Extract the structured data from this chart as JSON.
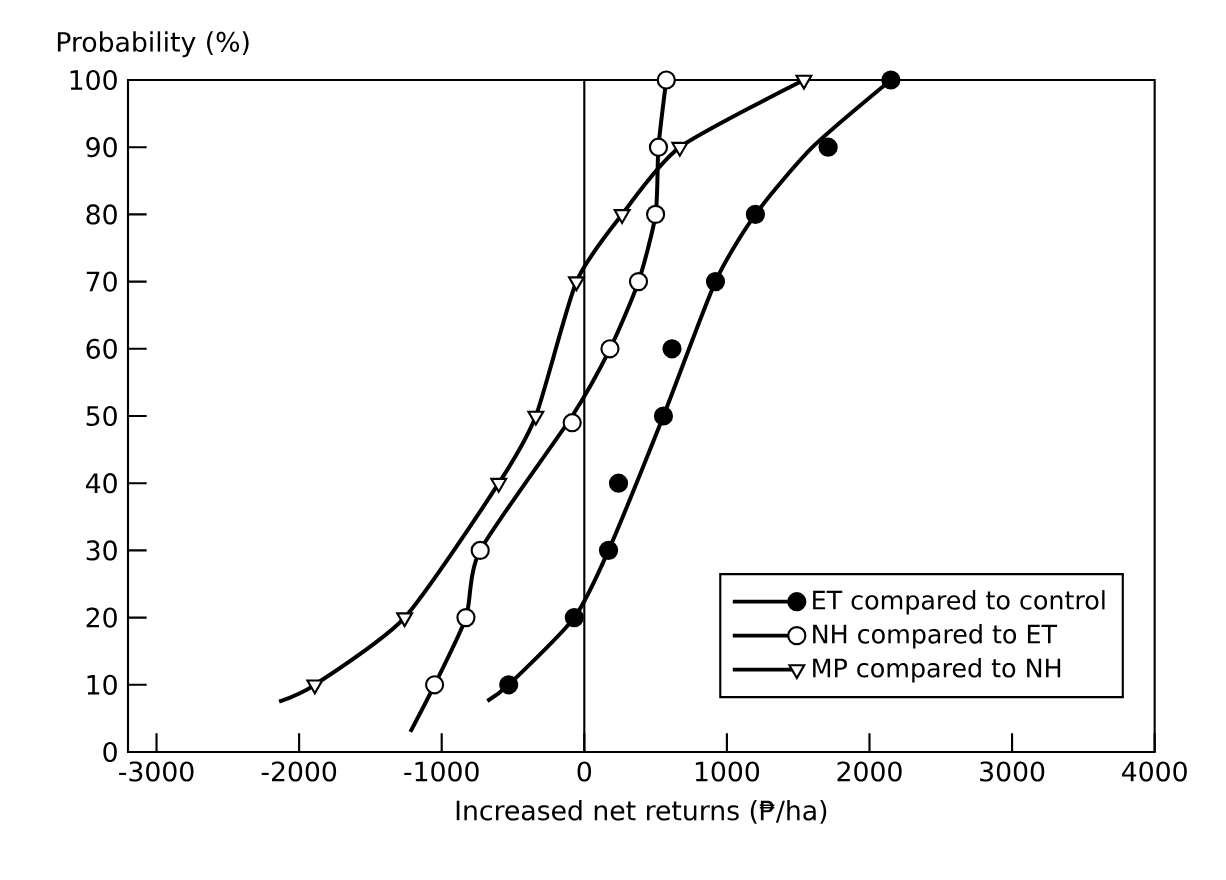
{
  "chart_data": {
    "type": "scatter",
    "xlabel": "Increased net returns (₱/ha)",
    "ylabel": "Probability (%)",
    "xlim": [
      -3200,
      4000
    ],
    "xticks": [
      -3000,
      -2000,
      -1000,
      0,
      1000,
      2000,
      3000,
      4000
    ],
    "ylim": [
      0,
      100
    ],
    "yticks": [
      0,
      10,
      20,
      30,
      40,
      50,
      60,
      70,
      80,
      90,
      100
    ],
    "legend": "bottom right",
    "grid": false,
    "ref_lines": [
      {
        "axis": "x",
        "value": 0,
        "color": "#000000"
      }
    ],
    "series": [
      {
        "name": "ET compared to control",
        "marker": "circle",
        "color": "#000000",
        "x": [
          -530,
          -70,
          170,
          240,
          555,
          615,
          920,
          1200,
          1710,
          2150
        ],
        "values": [
          10,
          20,
          30,
          40,
          50,
          60,
          70,
          80,
          90,
          100
        ]
      },
      {
        "name": "NH compared to ET",
        "marker": "circle",
        "color": "#ffffff",
        "x": [
          -1050,
          -830,
          -730,
          -85,
          180,
          380,
          500,
          520,
          575
        ],
        "values": [
          10,
          20,
          30,
          49,
          60,
          70,
          80,
          90,
          100
        ]
      },
      {
        "name": "MP compared to NH",
        "marker": "triangle",
        "color": "#ffffff",
        "x": [
          -1890,
          -1260,
          -600,
          -340,
          -55,
          265,
          670,
          1540
        ],
        "values": [
          10,
          20,
          40,
          50,
          70,
          80,
          90,
          100
        ]
      },
      {
        "type": "line",
        "marker": "none",
        "color": "#000000",
        "x": [
          -680,
          -530,
          -70,
          170,
          555,
          920,
          1200,
          1600,
          2150
        ],
        "values": [
          7.6,
          10,
          20,
          30,
          50,
          70,
          80,
          90,
          100
        ]
      },
      {
        "type": "line",
        "marker": "none",
        "color": "#000000",
        "x": [
          -1220,
          -1050,
          -830,
          -730,
          -85,
          180,
          380,
          500,
          520,
          575
        ],
        "values": [
          3,
          10,
          20,
          30,
          50,
          60,
          70,
          80,
          90,
          100
        ]
      },
      {
        "type": "line",
        "marker": "none",
        "color": "#000000",
        "x": [
          -2140,
          -1890,
          -1260,
          -600,
          -340,
          -55,
          265,
          670,
          1540
        ],
        "values": [
          7.5,
          10,
          20,
          40,
          50,
          70,
          80,
          90,
          100
        ]
      }
    ]
  }
}
